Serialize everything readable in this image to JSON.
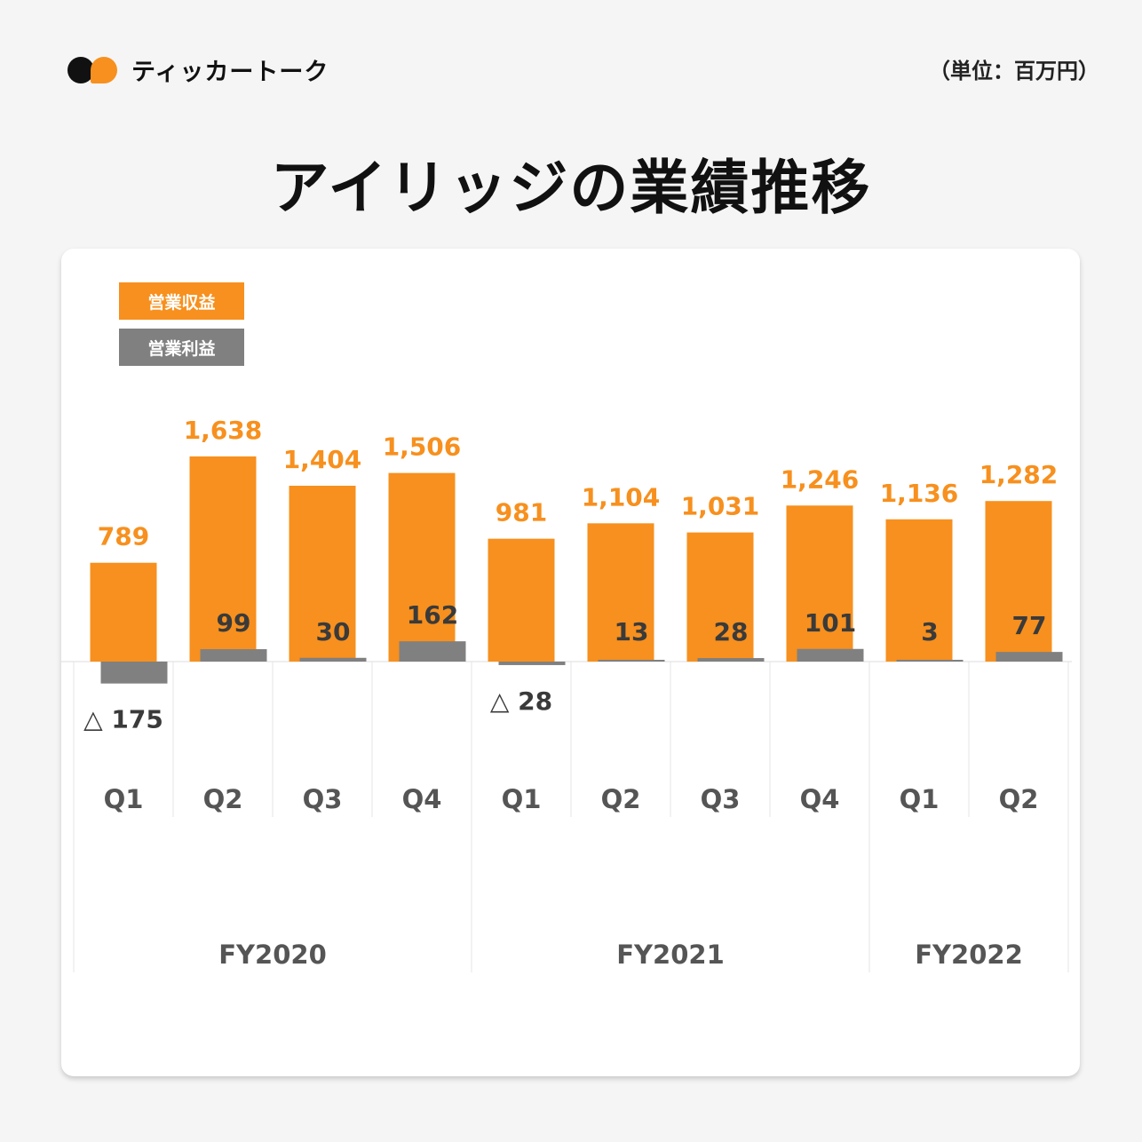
{
  "brand": {
    "name": "ティッカートーク",
    "logo_icon": "speech-bubbles-logo-icon"
  },
  "unit_label": "（単位：百万円）",
  "title": "アイリッジの業績推移",
  "colors": {
    "revenue": "#f7901e",
    "operating_profit": "#808080",
    "quarter_label": "#555555",
    "value_label_dark": "#3a3a3a"
  },
  "chart_data": {
    "type": "bar",
    "categories": [
      "Q1",
      "Q2",
      "Q3",
      "Q4",
      "Q1",
      "Q2",
      "Q3",
      "Q4",
      "Q1",
      "Q2"
    ],
    "groups": [
      {
        "label": "FY2020",
        "quarters": 4
      },
      {
        "label": "FY2021",
        "quarters": 4
      },
      {
        "label": "FY2022",
        "quarters": 2
      }
    ],
    "series": [
      {
        "name": "営業収益",
        "values": [
          789,
          1638,
          1404,
          1506,
          981,
          1104,
          1031,
          1246,
          1136,
          1282
        ],
        "labels": [
          "789",
          "1,638",
          "1,404",
          "1,506",
          "981",
          "1,104",
          "1,031",
          "1,246",
          "1,136",
          "1,282"
        ]
      },
      {
        "name": "営業利益",
        "values": [
          -175,
          99,
          30,
          162,
          -28,
          13,
          28,
          101,
          3,
          77
        ],
        "labels": [
          "△ 175",
          "99",
          "30",
          "162",
          "△ 28",
          "13",
          "28",
          "101",
          "3",
          "77"
        ]
      }
    ],
    "legend": "top-left",
    "grid": false
  }
}
